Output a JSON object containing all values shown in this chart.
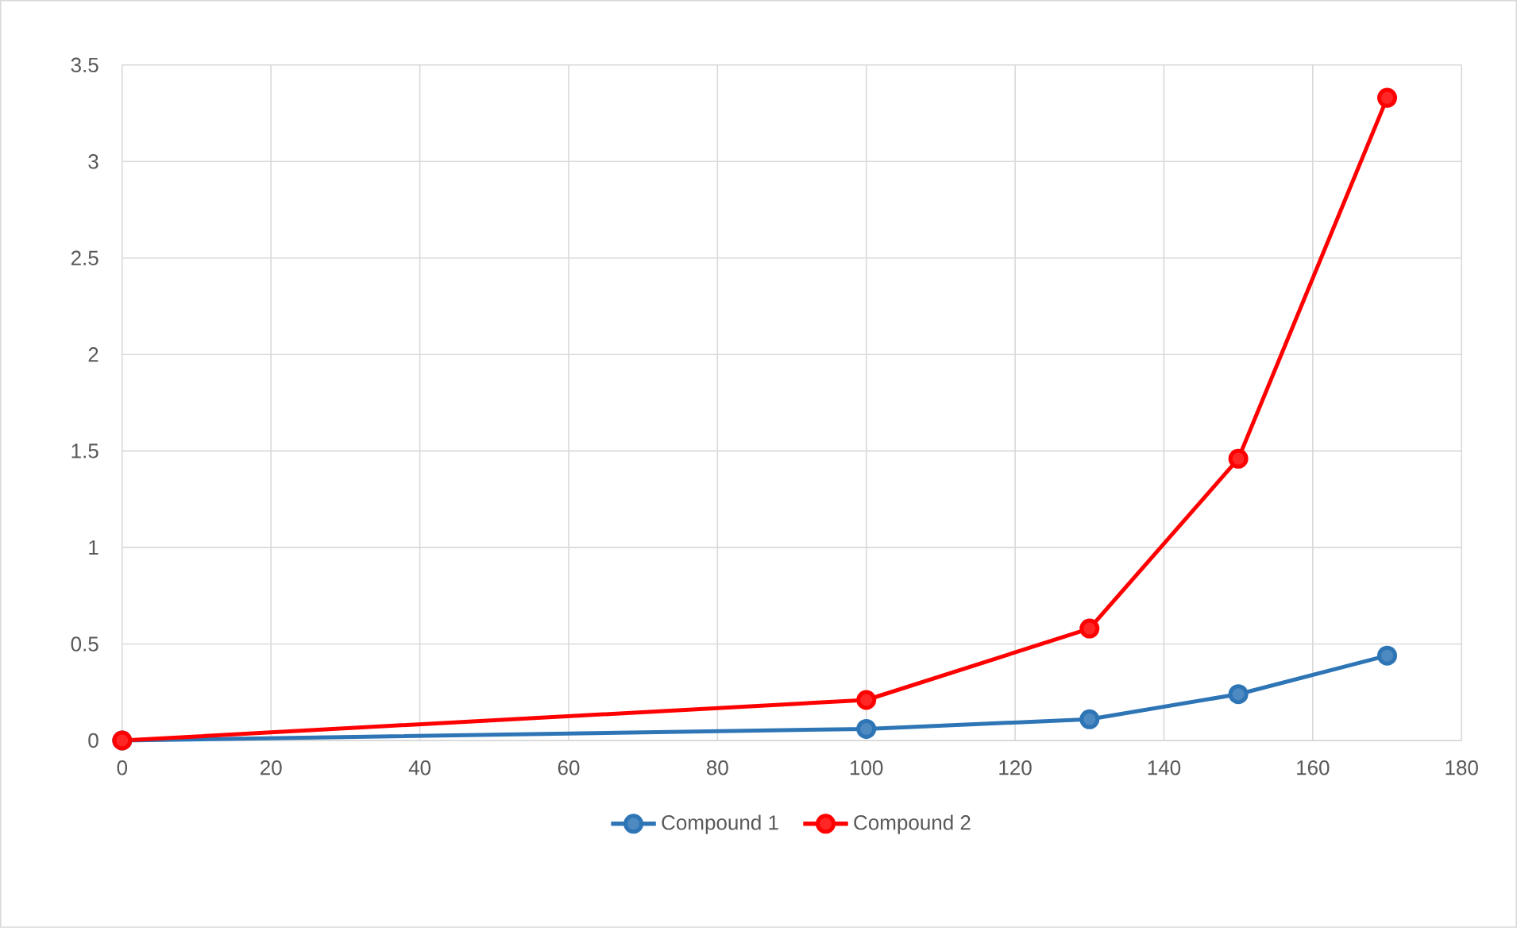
{
  "chart_data": {
    "type": "line",
    "x": [
      0,
      100,
      130,
      150,
      170
    ],
    "series": [
      {
        "name": "Compound 1",
        "color": "#2e75b6",
        "values": [
          0,
          0.06,
          0.11,
          0.24,
          0.44
        ]
      },
      {
        "name": "Compound 2",
        "color": "#ff0000",
        "values": [
          0,
          0.21,
          0.58,
          1.46,
          3.33
        ]
      }
    ],
    "xlim": [
      0,
      180
    ],
    "xticks": [
      0,
      20,
      40,
      60,
      80,
      100,
      120,
      140,
      160,
      180
    ],
    "ylim": [
      0,
      3.5
    ],
    "yticks": [
      0,
      0.5,
      1,
      1.5,
      2,
      2.5,
      3,
      3.5
    ],
    "grid": true,
    "legend": "bottom",
    "marker": "circle",
    "line_style": "solid"
  }
}
